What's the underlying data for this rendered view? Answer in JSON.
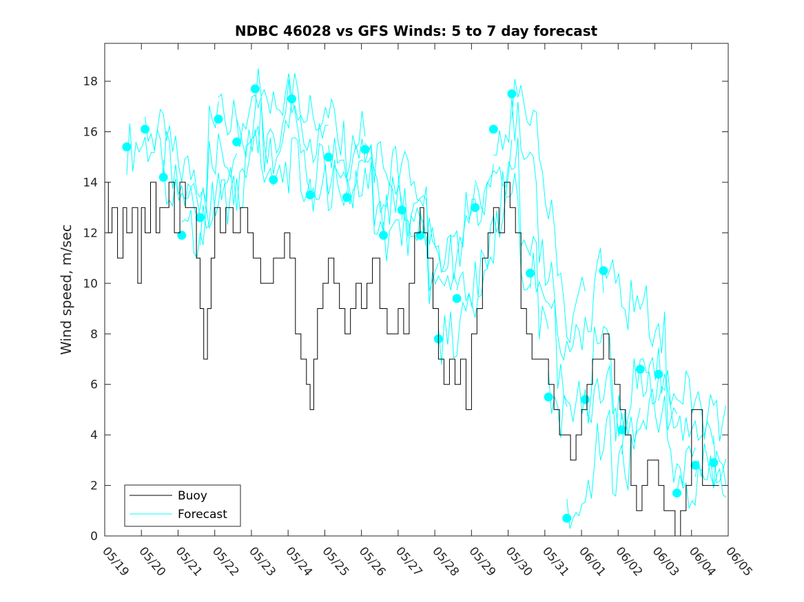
{
  "chart_data": {
    "type": "line",
    "title": "NDBC 46028 vs GFS Winds: 5 to 7 day forecast",
    "xlabel": "",
    "ylabel": "Wind speed, m/sec",
    "x_ticks": [
      "05/19",
      "05/20",
      "05/21",
      "05/22",
      "05/23",
      "05/24",
      "05/25",
      "05/26",
      "05/27",
      "05/28",
      "05/29",
      "05/30",
      "05/31",
      "06/01",
      "06/02",
      "06/03",
      "06/04",
      "06/05"
    ],
    "xlim": [
      0,
      17
    ],
    "ylim": [
      0,
      19.5
    ],
    "y_ticks": [
      0,
      2,
      4,
      6,
      8,
      10,
      12,
      14,
      16,
      18
    ],
    "grid": false,
    "legend_position": "bottom-left",
    "colors": {
      "buoy": "#000000",
      "forecast": "#00ffff"
    },
    "series": [
      {
        "name": "Buoy",
        "x": [
          0,
          0.1,
          0.2,
          0.35,
          0.5,
          0.6,
          0.75,
          0.9,
          1.0,
          1.1,
          1.25,
          1.4,
          1.5,
          1.6,
          1.75,
          1.9,
          2.05,
          2.2,
          2.35,
          2.5,
          2.6,
          2.7,
          2.8,
          2.9,
          3.0,
          3.15,
          3.3,
          3.5,
          3.7,
          3.9,
          4.05,
          4.25,
          4.45,
          4.6,
          4.75,
          4.9,
          5.05,
          5.2,
          5.35,
          5.5,
          5.6,
          5.7,
          5.8,
          5.95,
          6.1,
          6.25,
          6.4,
          6.55,
          6.7,
          6.85,
          7.0,
          7.15,
          7.3,
          7.5,
          7.7,
          7.85,
          8.0,
          8.15,
          8.3,
          8.45,
          8.6,
          8.7,
          8.8,
          8.95,
          9.1,
          9.25,
          9.4,
          9.55,
          9.7,
          9.85,
          10.0,
          10.15,
          10.3,
          10.45,
          10.6,
          10.75,
          10.9,
          11.05,
          11.2,
          11.35,
          11.5,
          11.65,
          11.8,
          11.95,
          12.1,
          12.25,
          12.4,
          12.55,
          12.7,
          12.85,
          13.0,
          13.15,
          13.3,
          13.45,
          13.6,
          13.75,
          13.9,
          14.05,
          14.2,
          14.35,
          14.5,
          14.65,
          14.8,
          14.95,
          15.1,
          15.25,
          15.4,
          15.55,
          15.7,
          15.85,
          16.0,
          16.15,
          16.3,
          16.45,
          16.6
        ],
        "values": [
          14,
          12,
          13,
          11,
          13,
          12,
          13,
          10,
          13,
          12,
          14,
          12,
          13,
          13,
          14,
          12,
          14,
          13,
          13,
          11,
          9,
          7,
          9,
          11,
          13,
          12,
          13,
          12,
          13,
          12,
          11,
          10,
          10,
          11,
          11,
          12,
          11,
          8,
          7,
          6,
          5,
          7,
          9,
          10,
          11,
          10,
          9,
          8,
          9,
          10,
          9,
          10,
          11,
          9,
          8,
          8,
          9,
          8,
          10,
          12,
          13,
          12,
          11,
          9,
          7,
          6,
          7,
          6,
          7,
          5,
          8,
          9,
          11,
          12,
          13,
          12,
          14,
          13,
          12,
          9,
          8,
          7,
          7,
          7,
          6,
          5,
          4,
          4,
          3,
          4,
          5,
          6,
          7,
          7,
          8,
          7,
          6,
          5,
          4,
          2,
          1,
          2,
          3,
          3,
          2,
          1,
          1,
          0,
          1,
          2,
          5,
          5,
          2,
          2,
          2
        ]
      },
      {
        "name": "Forecast",
        "x": [
          0.6,
          1.1,
          1.6,
          2.1,
          2.6,
          3.1,
          3.6,
          4.1,
          4.6,
          5.1,
          5.6,
          6.1,
          6.6,
          7.1,
          7.6,
          8.1,
          8.6,
          9.1,
          9.6,
          10.1,
          10.6,
          11.1,
          11.6,
          12.1,
          12.6,
          13.1,
          13.6,
          14.1,
          14.6,
          15.1,
          15.6,
          16.1,
          16.6
        ],
        "values": [
          15.4,
          16.1,
          14.2,
          11.9,
          12.6,
          16.5,
          15.6,
          17.7,
          14.1,
          17.3,
          13.5,
          15.0,
          13.4,
          15.3,
          11.9,
          12.9,
          11.9,
          7.8,
          9.4,
          13.0,
          16.1,
          17.5,
          10.4,
          5.5,
          0.7,
          5.4,
          10.5,
          4.2,
          6.6,
          6.4,
          1.7,
          2.8,
          2.9
        ]
      }
    ]
  }
}
